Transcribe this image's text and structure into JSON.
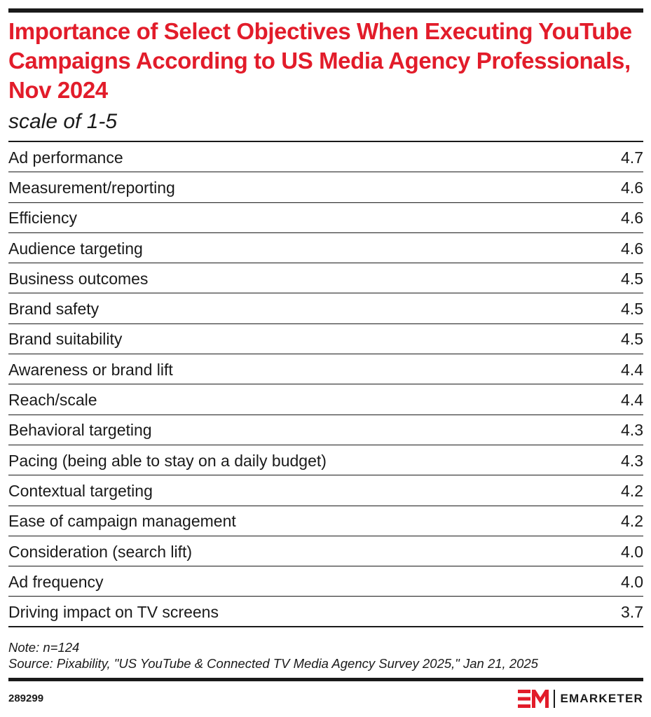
{
  "colors": {
    "title": "#e21c2a",
    "text": "#1a1a1a",
    "rule": "#1a1a1a",
    "logo_red": "#e21c2a"
  },
  "chart_data": {
    "type": "table",
    "title": "Importance of Select Objectives When Executing YouTube Campaigns According to US Media Agency Professionals, Nov 2024",
    "subtitle": "scale of 1-5",
    "rows": [
      {
        "label": "Ad performance",
        "value": "4.7"
      },
      {
        "label": "Measurement/reporting",
        "value": "4.6"
      },
      {
        "label": "Efficiency",
        "value": "4.6"
      },
      {
        "label": "Audience targeting",
        "value": "4.6"
      },
      {
        "label": "Business outcomes",
        "value": "4.5"
      },
      {
        "label": "Brand safety",
        "value": "4.5"
      },
      {
        "label": "Brand suitability",
        "value": "4.5"
      },
      {
        "label": "Awareness or brand lift",
        "value": "4.4"
      },
      {
        "label": "Reach/scale",
        "value": "4.4"
      },
      {
        "label": "Behavioral targeting",
        "value": "4.3"
      },
      {
        "label": "Pacing (being able to stay on a daily budget)",
        "value": "4.3"
      },
      {
        "label": "Contextual targeting",
        "value": "4.2"
      },
      {
        "label": "Ease of campaign management",
        "value": "4.2"
      },
      {
        "label": "Consideration (search lift)",
        "value": "4.0"
      },
      {
        "label": "Ad frequency",
        "value": "4.0"
      },
      {
        "label": "Driving impact on TV screens",
        "value": "3.7"
      }
    ],
    "note": "Note: n=124",
    "source": "Source: Pixability, \"US YouTube & Connected TV Media Agency Survey 2025,\" Jan 21, 2025"
  },
  "footer": {
    "chart_id": "289299",
    "brand_name": "EMARKETER",
    "logo_icon": "em-logo-icon"
  }
}
